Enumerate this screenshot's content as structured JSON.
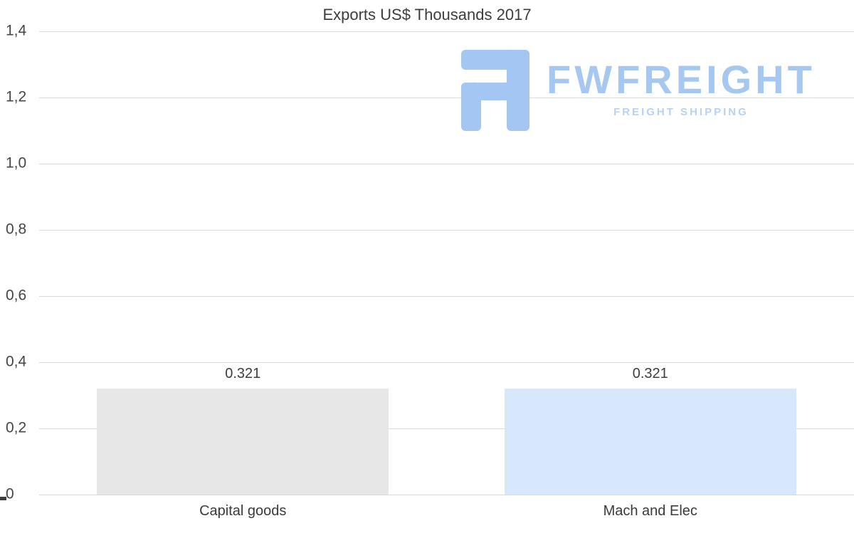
{
  "title": "Exports US$ Thousands 2017",
  "watermark": {
    "brand": "FWFREIGHT",
    "tagline": "FREIGHT SHIPPING",
    "color": "#a6c8f0"
  },
  "chart_data": {
    "type": "bar",
    "title": "Exports US$ Thousands 2017",
    "categories": [
      "Capital goods",
      "Mach and Elec"
    ],
    "values": [
      0.321,
      0.321
    ],
    "value_labels": [
      "0.321",
      "0.321"
    ],
    "bar_colors": [
      "#e7e7e7",
      "#d7e8fc"
    ],
    "xlabel": "",
    "ylabel": "",
    "ylim": [
      0,
      1.4
    ],
    "ytick_interval": 0.2,
    "ytick_labels": [
      "1,4",
      "1,2",
      "1,0",
      "0,8",
      "0,6",
      "0,4",
      "0,2",
      "0"
    ],
    "grid": true,
    "legend": "none",
    "decimal_separator_axis": ",",
    "decimal_separator_labels": "."
  }
}
